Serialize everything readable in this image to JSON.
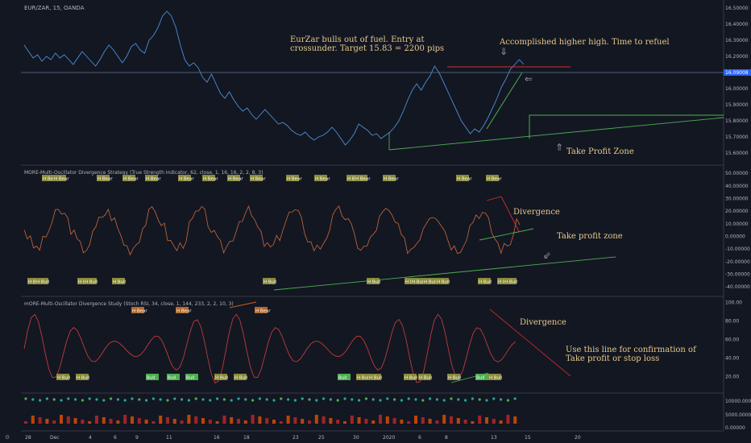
{
  "chart_data": {
    "type": "line",
    "symbol": "EUR/ZAR, 15, OANDA",
    "x_ticks": [
      "28",
      "Dec",
      "4",
      "6",
      "9",
      "11",
      "16",
      "18",
      "23",
      "25",
      "30",
      "2020",
      "6",
      "8",
      "13",
      "15",
      "20"
    ],
    "price_pane": {
      "y_ticks": [
        "16.50000",
        "16.40000",
        "16.30000",
        "16.20000",
        "16.10000",
        "16.00000",
        "15.90000",
        "15.80000",
        "15.70000",
        "15.60000"
      ],
      "ylim": [
        15.55,
        16.53
      ],
      "current_price": "16.09008",
      "series": [
        {
          "values": [
            16.27,
            16.23,
            16.19,
            16.21,
            16.17,
            16.2,
            16.18,
            16.22,
            16.19,
            16.21,
            16.18,
            16.15,
            16.19,
            16.23,
            16.2,
            16.17,
            16.14,
            16.18,
            16.23,
            16.27,
            16.24,
            16.2,
            16.16,
            16.2,
            16.26,
            16.28,
            16.24,
            16.22,
            16.3,
            16.33,
            16.38,
            16.45,
            16.48,
            16.45,
            16.38,
            16.27,
            16.18,
            16.14,
            16.16,
            16.13,
            16.07,
            16.04,
            16.09,
            16.03,
            15.97,
            15.94,
            15.98,
            15.93,
            15.89,
            15.86,
            15.88,
            15.84,
            15.81,
            15.84,
            15.87,
            15.84,
            15.81,
            15.78,
            15.79,
            15.77,
            15.74,
            15.72,
            15.71,
            15.73,
            15.7,
            15.68,
            15.7,
            15.71,
            15.73,
            15.76,
            15.73,
            15.69,
            15.65,
            15.68,
            15.72,
            15.78,
            15.76,
            15.74,
            15.71,
            15.72,
            15.69,
            15.71,
            15.73,
            15.76,
            15.8,
            15.86,
            15.93,
            15.99,
            16.03,
            15.99,
            16.04,
            16.08,
            16.14,
            16.1,
            16.04,
            15.98,
            15.92,
            15.86,
            15.8,
            15.76,
            15.72,
            15.75,
            15.73,
            15.77,
            15.82,
            15.88,
            15.94,
            16.01,
            16.06,
            16.12,
            16.15,
            16.18,
            16.15
          ]
        }
      ]
    },
    "tsi_pane": {
      "title": "MORE-Multi-Oscillator Divergence Strategy (True Strength Indicator, 62, close, 1, 16, 16, 2, 2, 8, 3)",
      "y_ticks": [
        "50.00000",
        "40.00000",
        "30.00000",
        "20.00000",
        "10.00000",
        "0.00000",
        "-10.00000",
        "-20.00000",
        "-30.00000",
        "-40.00000"
      ],
      "ylim": [
        -45,
        52
      ],
      "bear_tags": [
        "H Bear",
        "H Bear",
        "H Bear",
        "H Bear",
        "H Bear",
        "H Bear",
        "H Bear",
        "H Bear",
        "H Bear",
        "H Bear",
        "H Bear",
        "H Bear",
        "H Bear",
        "H Bear",
        "H Bear",
        "H Bear"
      ],
      "bull_tags": [
        "H Bull",
        "H Bull",
        "H Bull",
        "H Bull",
        "H Bull",
        "H Bull",
        "H Bull",
        "H Bull",
        "H Bull",
        "H Bull",
        "H Bull",
        "H Bull",
        "H Bull",
        "H Bull"
      ]
    },
    "stoch_pane": {
      "title": "mORE-Multi-Oscillator Divergence Study (Stoch RSI, 34, close, 1, 144, 233, 2, 2, 10, 3)",
      "y_ticks": [
        "100.00",
        "80.00",
        "60.00",
        "40.00",
        "20.00"
      ],
      "ylim": [
        5,
        103
      ],
      "bear_tags": [
        "H Bear",
        "H Bear",
        "H Bear"
      ],
      "bull_tags": [
        "H Bull",
        "H Bull",
        "Bull",
        "Bull",
        "Bull",
        "H Bull",
        "H Bull",
        "Bull",
        "H Bull",
        "H Bull",
        "H Bull",
        "H Bull",
        "H Bull",
        "Bull",
        "H Bull"
      ]
    },
    "volume_pane": {
      "y_ticks": [
        "10000.00000",
        "5000.00000",
        "0.00000"
      ]
    },
    "annotations": {
      "note1": [
        "EurZar bulls out of fuel. Entry at",
        "crossunder.  Target 15.83 = 2200 pips"
      ],
      "note2": "Accomplished higher high. Time to refuel",
      "note3": "Take Profit Zone",
      "note4": "Divergence",
      "note5": "Take profit zone",
      "note6": "Divergence",
      "note7": [
        "Use this line for confirmation of",
        "Take profit or stop loss"
      ]
    },
    "colors": {
      "background": "#131722",
      "price_line": "#4a90d9",
      "oscillator": "#c0392b",
      "bull_tag": "#8a8a3a",
      "trend_green": "#4caf50",
      "trend_red": "#d32f2f"
    }
  }
}
